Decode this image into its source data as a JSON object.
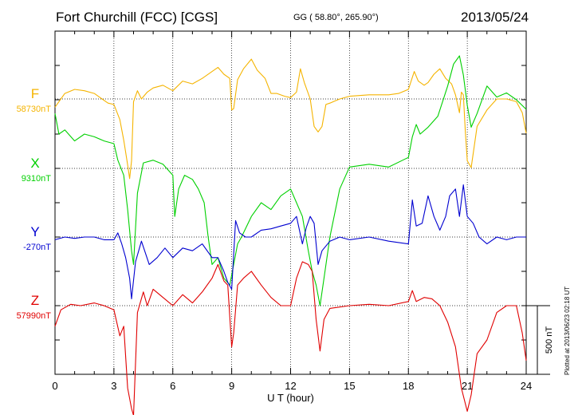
{
  "header": {
    "title": "Fort Churchill (FCC)  [CGS]",
    "coords": "GG ( 58.80°, 265.90°)",
    "date": "2013/05/24"
  },
  "plotted_note": "Plotted at 2013/06/23 02:18 UT",
  "chart_data": {
    "type": "line",
    "title": "Fort Churchill (FCC)  [CGS]",
    "xlabel": "U T (hour)",
    "xlim": [
      0,
      24
    ],
    "xticks": [
      0,
      3,
      6,
      9,
      12,
      15,
      18,
      21,
      24
    ],
    "xtick_labels": [
      "0",
      "3",
      "6",
      "9",
      "12",
      "15",
      "18",
      "21",
      "24"
    ],
    "scale_label": "500 nT",
    "scale_nT": 500,
    "grid": true,
    "series": [
      {
        "name": "F",
        "baseline_label": "58730nT",
        "baseline_nT": 58730,
        "color": "#f5b400",
        "x": [
          0,
          0.5,
          1,
          1.5,
          2,
          2.3,
          2.7,
          3,
          3.3,
          3.5,
          3.7,
          3.8,
          3.9,
          4.0,
          4.2,
          4.4,
          4.7,
          5.0,
          5.5,
          6.0,
          6.5,
          7.0,
          7.5,
          8.0,
          8.3,
          8.6,
          8.9,
          9.0,
          9.1,
          9.3,
          9.6,
          10.0,
          10.3,
          10.7,
          11.0,
          11.3,
          11.7,
          12.0,
          12.3,
          12.5,
          12.7,
          13.0,
          13.2,
          13.4,
          13.6,
          13.8,
          14.0,
          14.5,
          15.0,
          16.0,
          17.0,
          17.5,
          18.0,
          18.3,
          18.5,
          18.8,
          19.0,
          19.3,
          19.6,
          19.9,
          20.2,
          20.4,
          20.6,
          20.7,
          20.8,
          20.9,
          21.0,
          21.2,
          21.5,
          22.0,
          22.5,
          23.0,
          23.5,
          23.8,
          24.0
        ],
        "values": [
          -60,
          40,
          70,
          60,
          40,
          10,
          -30,
          -40,
          -150,
          -300,
          -480,
          -580,
          -450,
          -20,
          60,
          0,
          50,
          80,
          100,
          60,
          130,
          110,
          150,
          200,
          230,
          180,
          150,
          -80,
          -70,
          140,
          220,
          290,
          210,
          150,
          40,
          40,
          20,
          10,
          50,
          220,
          120,
          0,
          -200,
          -240,
          -200,
          -40,
          -30,
          0,
          20,
          30,
          30,
          40,
          70,
          200,
          130,
          100,
          120,
          180,
          220,
          150,
          110,
          30,
          -100,
          50,
          30,
          -240,
          -450,
          -500,
          -200,
          -80,
          0,
          0,
          -20,
          -100,
          -250
        ]
      },
      {
        "name": "X",
        "baseline_label": "9310nT",
        "baseline_nT": 9310,
        "color": "#00d000",
        "x": [
          0,
          0.2,
          0.5,
          1,
          1.5,
          2,
          2.5,
          3,
          3.2,
          3.5,
          3.7,
          3.9,
          4.0,
          4.2,
          4.5,
          5.0,
          5.5,
          6.0,
          6.1,
          6.3,
          6.6,
          7.0,
          7.3,
          7.6,
          7.8,
          8.0,
          8.3,
          8.6,
          8.9,
          9.1,
          9.3,
          9.5,
          10.0,
          10.5,
          11.0,
          11.5,
          12.0,
          12.3,
          12.6,
          12.9,
          13.1,
          13.3,
          13.5,
          13.7,
          14.0,
          14.5,
          15.0,
          16.0,
          17.0,
          18.0,
          18.2,
          18.4,
          18.6,
          19.0,
          19.5,
          20.0,
          20.3,
          20.6,
          20.8,
          21.0,
          21.2,
          21.5,
          22.0,
          22.5,
          23.0,
          23.5,
          24.0
        ],
        "values": [
          400,
          250,
          280,
          200,
          250,
          230,
          200,
          180,
          60,
          -50,
          -300,
          -600,
          -700,
          -180,
          40,
          60,
          30,
          -50,
          -350,
          -150,
          -50,
          -80,
          -150,
          -250,
          -500,
          -700,
          -650,
          -800,
          -850,
          -700,
          -550,
          -500,
          -350,
          -250,
          -300,
          -200,
          -150,
          -250,
          -350,
          -600,
          -750,
          -850,
          -1000,
          -800,
          -500,
          -150,
          10,
          30,
          10,
          80,
          230,
          320,
          250,
          300,
          380,
          600,
          760,
          820,
          680,
          460,
          300,
          400,
          600,
          520,
          550,
          500,
          430
        ]
      },
      {
        "name": "Y",
        "baseline_label": "-270nT",
        "baseline_nT": -270,
        "color": "#0000d0",
        "x": [
          0,
          0.5,
          1,
          1.5,
          2,
          2.5,
          3,
          3.2,
          3.4,
          3.6,
          3.8,
          3.9,
          4.1,
          4.4,
          4.8,
          5.2,
          5.6,
          6.0,
          6.5,
          7.0,
          7.5,
          8.0,
          8.3,
          8.6,
          8.8,
          9.0,
          9.2,
          9.4,
          9.7,
          10.0,
          10.5,
          11.0,
          11.5,
          12.0,
          12.3,
          12.6,
          12.8,
          13.0,
          13.2,
          13.4,
          13.6,
          14.0,
          14.5,
          15.0,
          16.0,
          17.0,
          18.0,
          18.2,
          18.4,
          18.7,
          19.0,
          19.3,
          19.6,
          19.9,
          20.1,
          20.4,
          20.6,
          20.8,
          21.0,
          21.3,
          21.6,
          22.0,
          22.5,
          23.0,
          23.5,
          24.0
        ],
        "values": [
          -20,
          0,
          -10,
          0,
          0,
          -20,
          -20,
          30,
          -50,
          -150,
          -300,
          -450,
          -180,
          -30,
          -200,
          -150,
          -80,
          -150,
          -80,
          -100,
          -50,
          -150,
          -150,
          -250,
          -330,
          -380,
          120,
          30,
          0,
          0,
          50,
          60,
          80,
          100,
          150,
          -50,
          70,
          150,
          100,
          -200,
          -100,
          -30,
          0,
          -20,
          0,
          -30,
          -50,
          270,
          80,
          100,
          300,
          150,
          50,
          150,
          300,
          350,
          150,
          380,
          150,
          100,
          0,
          -50,
          0,
          -20,
          0,
          0
        ]
      },
      {
        "name": "Z",
        "baseline_label": "57990nT",
        "baseline_nT": 57990,
        "color": "#e00000",
        "x": [
          0,
          0.3,
          0.8,
          1.3,
          2.0,
          2.5,
          3.0,
          3.3,
          3.5,
          3.7,
          3.9,
          4.0,
          4.2,
          4.5,
          4.7,
          5.0,
          5.5,
          6.0,
          6.5,
          7.0,
          7.5,
          8.0,
          8.3,
          8.6,
          8.8,
          9.0,
          9.1,
          9.3,
          9.6,
          10.0,
          10.5,
          11.0,
          11.5,
          12.0,
          12.3,
          12.6,
          12.9,
          13.1,
          13.3,
          13.5,
          13.7,
          14.0,
          15.0,
          16.0,
          17.0,
          18.0,
          18.2,
          18.4,
          18.8,
          19.2,
          19.6,
          20.0,
          20.4,
          20.7,
          21.0,
          21.2,
          21.5,
          22.0,
          22.5,
          23.0,
          23.5,
          23.8,
          24.0
        ],
        "values": [
          -150,
          -30,
          10,
          0,
          20,
          0,
          -30,
          -220,
          -150,
          -600,
          -750,
          -800,
          -50,
          100,
          0,
          120,
          60,
          0,
          80,
          20,
          100,
          200,
          300,
          180,
          150,
          -300,
          -200,
          150,
          200,
          250,
          150,
          60,
          0,
          0,
          200,
          320,
          300,
          250,
          -100,
          -330,
          -100,
          -20,
          0,
          10,
          0,
          30,
          110,
          30,
          60,
          50,
          0,
          -120,
          -300,
          -600,
          -770,
          -650,
          -350,
          -250,
          -50,
          0,
          0,
          -200,
          -400
        ]
      }
    ]
  }
}
